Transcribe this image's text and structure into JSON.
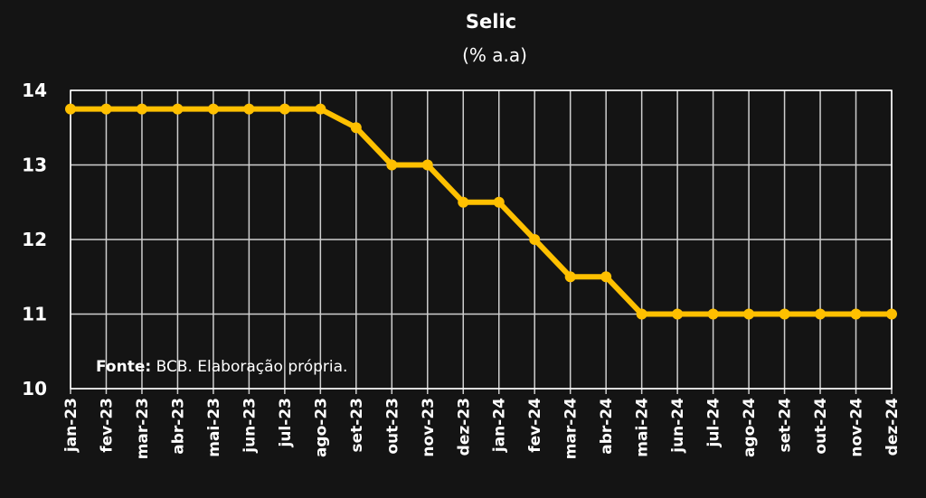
{
  "chart_data": {
    "type": "line",
    "title": "Selic",
    "subtitle": "(% a.a)",
    "categories": [
      "jan-23",
      "fev-23",
      "mar-23",
      "abr-23",
      "mai-23",
      "jun-23",
      "jul-23",
      "ago-23",
      "set-23",
      "out-23",
      "nov-23",
      "dez-23",
      "jan-24",
      "fev-24",
      "mar-24",
      "abr-24",
      "mai-24",
      "jun-24",
      "jul-24",
      "ago-24",
      "set-24",
      "out-24",
      "nov-24",
      "dez-24"
    ],
    "series": [
      {
        "values": [
          13.75,
          13.75,
          13.75,
          13.75,
          13.75,
          13.75,
          13.75,
          13.75,
          13.5,
          13,
          13,
          12.5,
          12.5,
          12,
          11.5,
          11.5,
          11,
          11,
          11,
          11,
          11,
          11,
          11,
          11
        ],
        "color": "#FFC000"
      }
    ],
    "ylim": [
      10,
      14
    ],
    "yticks": [
      "14",
      "13",
      "12",
      "11",
      "10"
    ],
    "grid": true,
    "source_label": "Fonte:",
    "source_text": " BCB. Elaboração própria."
  }
}
